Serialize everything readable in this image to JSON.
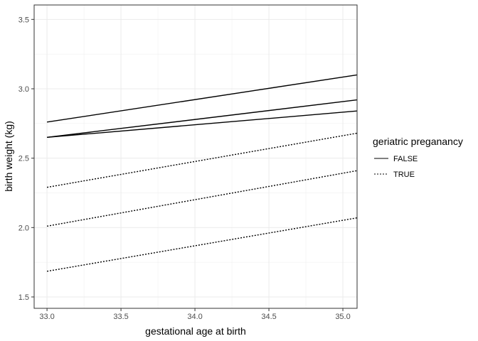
{
  "chart_data": {
    "type": "line",
    "title": "",
    "xlabel": "gestational age at birth",
    "ylabel": "birth weight (kg)",
    "xlim": [
      32.913,
      35.096
    ],
    "ylim": [
      1.418,
      3.604
    ],
    "xticks": [
      33.0,
      33.5,
      34.0,
      34.5,
      35.0
    ],
    "xtick_labels": [
      "33.0",
      "33.5",
      "34.0",
      "34.5",
      "35.0"
    ],
    "yticks": [
      1.5,
      2.0,
      2.5,
      3.0,
      3.5
    ],
    "ytick_labels": [
      "1.5",
      "2.0",
      "2.5",
      "3.0",
      "3.5"
    ],
    "grid": true,
    "legend": {
      "title": "geriatric preganancy",
      "placement": "right",
      "entries": [
        {
          "label": "FALSE",
          "linetype": "solid"
        },
        {
          "label": "TRUE",
          "linetype": "dotted"
        }
      ]
    },
    "series": [
      {
        "group": "FALSE",
        "linetype": "solid",
        "x": [
          33.0,
          35.096
        ],
        "y": [
          2.76,
          3.1
        ]
      },
      {
        "group": "FALSE",
        "linetype": "solid",
        "x": [
          33.0,
          35.096
        ],
        "y": [
          2.65,
          2.92
        ]
      },
      {
        "group": "FALSE",
        "linetype": "solid",
        "x": [
          33.0,
          35.096
        ],
        "y": [
          2.65,
          2.84
        ]
      },
      {
        "group": "TRUE",
        "linetype": "dotted",
        "x": [
          33.0,
          35.096
        ],
        "y": [
          2.29,
          2.68
        ]
      },
      {
        "group": "TRUE",
        "linetype": "dotted",
        "x": [
          33.0,
          35.096
        ],
        "y": [
          2.01,
          2.41
        ]
      },
      {
        "group": "TRUE",
        "linetype": "dotted",
        "x": [
          33.0,
          35.096
        ],
        "y": [
          1.685,
          2.07
        ]
      }
    ]
  }
}
